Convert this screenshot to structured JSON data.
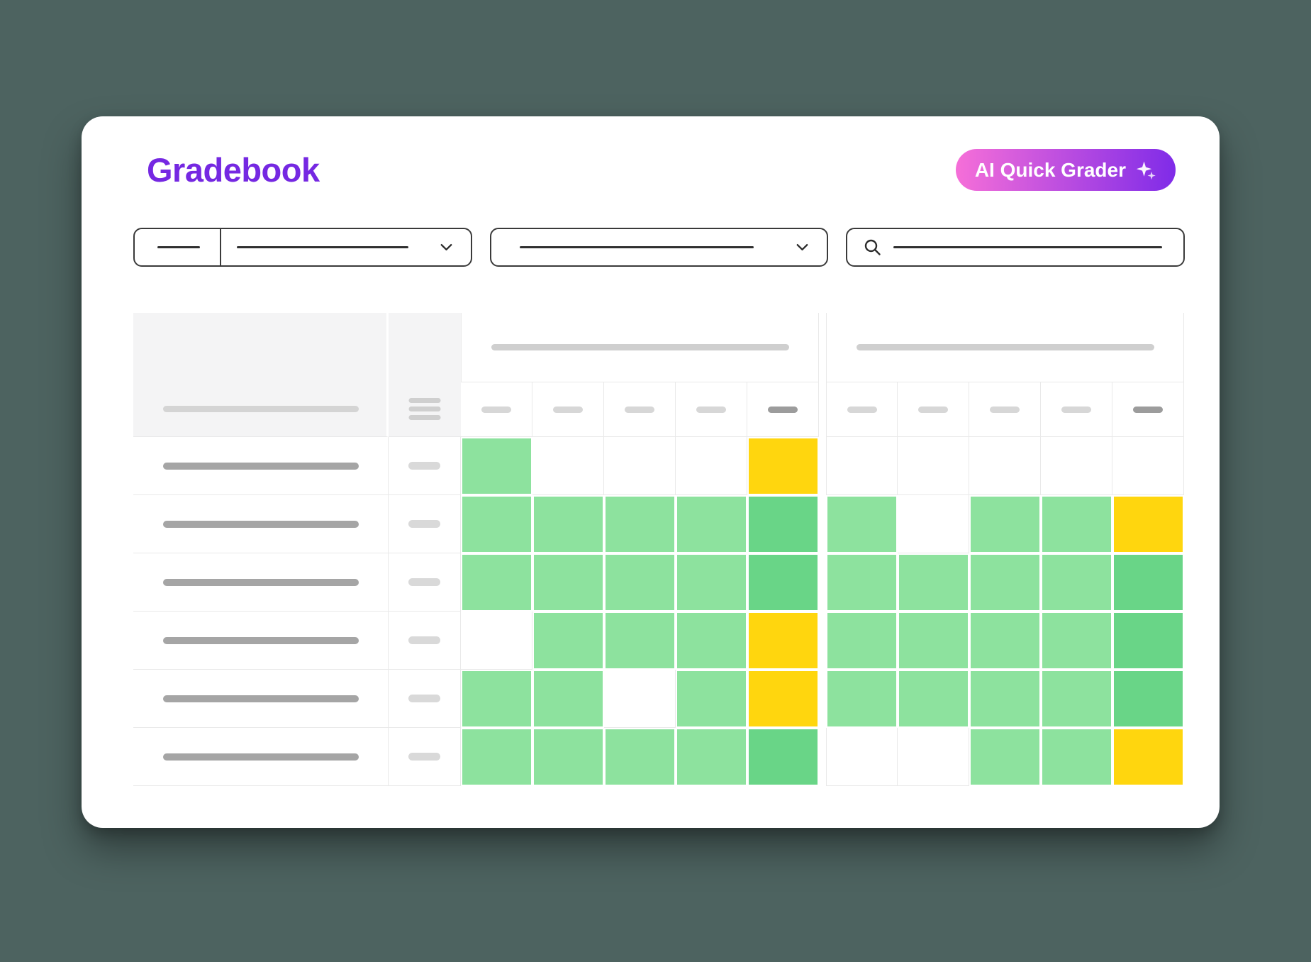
{
  "page": {
    "background": "#4D6360"
  },
  "header": {
    "title": "Gradebook",
    "title_color": "#7528E2",
    "ai_button": {
      "label": "AI Quick Grader",
      "icon": "sparkles-icon",
      "gradient_start": "#F66FD8",
      "gradient_end": "#7F2BE8",
      "text_color": "#FFFFFF"
    }
  },
  "filters": [
    {
      "name": "filter-select-primary",
      "type": "select",
      "icon": "chevron-down-icon",
      "placeholder_segments": 2
    },
    {
      "name": "filter-select-secondary",
      "type": "select",
      "icon": "chevron-down-icon",
      "placeholder_segments": 1
    },
    {
      "name": "search-input",
      "type": "search",
      "icon": "search-icon",
      "placeholder_segments": 1
    }
  ],
  "colors": {
    "grid_line": "#E9E9E9",
    "header_bg": "#F4F4F5",
    "cell_green_light": "#8DE29E",
    "cell_green_medium": "#69D587",
    "cell_yellow": "#FFD60E",
    "cell_empty": "#FFFFFF",
    "placeholder_dark": "#A5A5A5",
    "placeholder_light": "#D4D4D4",
    "placeholder_emphasis": "#9C9C9C"
  },
  "table": {
    "assignment_groups": [
      {
        "name": "assignment-group-1",
        "columns": 5
      },
      {
        "name": "assignment-group-2",
        "columns": 5
      }
    ],
    "column_dashes": [
      {
        "emphasis": false
      },
      {
        "emphasis": false
      },
      {
        "emphasis": false
      },
      {
        "emphasis": false
      },
      {
        "emphasis": true
      },
      {
        "emphasis": false
      },
      {
        "emphasis": false
      },
      {
        "emphasis": false
      },
      {
        "emphasis": false
      },
      {
        "emphasis": true
      }
    ],
    "rows": [
      {
        "cells": [
          "green",
          "empty",
          "empty",
          "empty",
          "yellow",
          "empty",
          "empty",
          "empty",
          "empty",
          "empty"
        ]
      },
      {
        "cells": [
          "green",
          "green",
          "green",
          "green",
          "dark-green",
          "green",
          "empty",
          "green",
          "green",
          "yellow"
        ]
      },
      {
        "cells": [
          "green",
          "green",
          "green",
          "green",
          "dark-green",
          "green",
          "green",
          "green",
          "green",
          "dark-green"
        ]
      },
      {
        "cells": [
          "empty",
          "green",
          "green",
          "green",
          "yellow",
          "green",
          "green",
          "green",
          "green",
          "dark-green"
        ]
      },
      {
        "cells": [
          "green",
          "green",
          "empty",
          "green",
          "yellow",
          "green",
          "green",
          "green",
          "green",
          "dark-green"
        ]
      },
      {
        "cells": [
          "green",
          "green",
          "green",
          "green",
          "dark-green",
          "empty",
          "empty",
          "green",
          "green",
          "yellow"
        ]
      }
    ]
  }
}
